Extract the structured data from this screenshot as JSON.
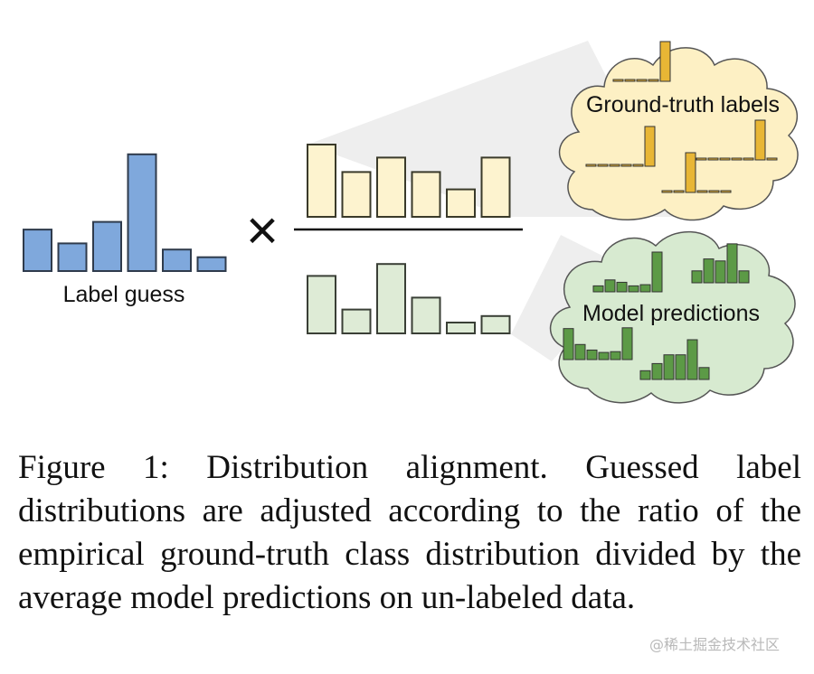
{
  "figure": {
    "label_guess_text": "Label guess",
    "ground_truth_text": "Ground-truth labels",
    "model_predictions_text": "Model predictions",
    "multiply_symbol": "×",
    "colors": {
      "label_guess_fill": "#7fa8dc",
      "label_guess_stroke": "#2f3b4c",
      "numerator_fill": "#fdf3cf",
      "numerator_stroke": "#3a3a2a",
      "denominator_fill": "#deebd6",
      "denominator_stroke": "#3a3f36",
      "gt_cloud": "#fdf0c4",
      "pred_cloud": "#d7ead0",
      "gt_mini_bar": "#e8b635",
      "pred_mini_bar": "#5c9a46",
      "wedge": "#eeeeee"
    }
  },
  "chart_data": [
    {
      "type": "bar",
      "name": "label-guess",
      "values": [
        0.27,
        0.18,
        0.32,
        0.76,
        0.14,
        0.09
      ]
    },
    {
      "type": "bar",
      "name": "numerator",
      "values": [
        0.5,
        0.31,
        0.41,
        0.31,
        0.19,
        0.41
      ]
    },
    {
      "type": "bar",
      "name": "denominator",
      "values": [
        0.53,
        0.22,
        0.64,
        0.33,
        0.1,
        0.16
      ]
    },
    {
      "type": "bar",
      "name": "ground-truth-samples",
      "samples": [
        [
          0,
          0,
          0,
          0,
          1
        ],
        [
          0,
          0,
          0,
          0,
          0,
          1
        ],
        [
          0,
          0,
          1,
          0,
          0,
          0
        ],
        [
          0,
          0,
          0,
          0,
          0,
          1,
          0
        ]
      ]
    },
    {
      "type": "bar",
      "name": "model-prediction-samples",
      "samples": [
        [
          0.15,
          0.3,
          0.24,
          0.15,
          0.18,
          1.0
        ],
        [
          0.3,
          0.6,
          0.55,
          0.98,
          0.3
        ],
        [
          0.78,
          0.38,
          0.24,
          0.18,
          0.2,
          0.8
        ],
        [
          0.22,
          0.4,
          0.62,
          0.62,
          1.0,
          0.3
        ]
      ]
    }
  ],
  "caption": {
    "text": "Figure 1: Distribution alignment. Guessed label distributions are adjusted according to the ratio of the empirical ground-truth class distribution divided by the average model predictions on un-­labeled data."
  },
  "watermark": {
    "text": "@稀土掘金技术社区"
  }
}
